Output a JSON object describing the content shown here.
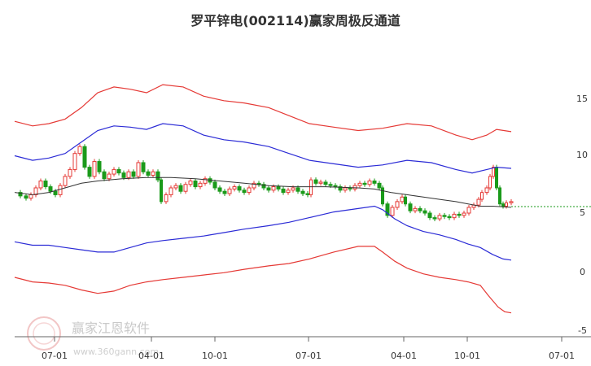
{
  "chart_data": {
    "type": "line",
    "title": "罗平锌电(002114)赢家周极反通道",
    "y_ticks": [
      "15",
      "10",
      "5",
      "0",
      "-5"
    ],
    "x_ticks": [
      "07-01",
      "04-01",
      "10-01",
      "07-01",
      "04-01",
      "10-01",
      "07-01"
    ],
    "ylim": [
      -5,
      18.5
    ],
    "grid": false,
    "colors": {
      "outer_band": "#e53935",
      "inner_band": "#2b2bd6",
      "moving_average": "#333333",
      "up_candle": "#e53935",
      "down_candle": "#1a9a1a",
      "last_price_line": "#1a9a1a"
    },
    "series": [
      {
        "role": "outer_upper",
        "values": [
          [
            18,
            13.0
          ],
          [
            40,
            12.6
          ],
          [
            60,
            12.8
          ],
          [
            80,
            13.2
          ],
          [
            100,
            14.2
          ],
          [
            120,
            15.5
          ],
          [
            140,
            16.0
          ],
          [
            160,
            15.8
          ],
          [
            180,
            15.5
          ],
          [
            200,
            16.2
          ],
          [
            225,
            16.0
          ],
          [
            250,
            15.2
          ],
          [
            275,
            14.8
          ],
          [
            300,
            14.6
          ],
          [
            330,
            14.2
          ],
          [
            355,
            13.5
          ],
          [
            380,
            12.8
          ],
          [
            410,
            12.5
          ],
          [
            440,
            12.2
          ],
          [
            470,
            12.4
          ],
          [
            500,
            12.8
          ],
          [
            530,
            12.6
          ],
          [
            560,
            11.8
          ],
          [
            580,
            11.4
          ],
          [
            598,
            11.8
          ],
          [
            610,
            12.3
          ],
          [
            628,
            12.1
          ]
        ]
      },
      {
        "role": "inner_upper",
        "values": [
          [
            18,
            10.0
          ],
          [
            40,
            9.6
          ],
          [
            60,
            9.8
          ],
          [
            80,
            10.2
          ],
          [
            100,
            11.2
          ],
          [
            120,
            12.2
          ],
          [
            140,
            12.6
          ],
          [
            160,
            12.5
          ],
          [
            180,
            12.3
          ],
          [
            200,
            12.8
          ],
          [
            225,
            12.6
          ],
          [
            250,
            11.8
          ],
          [
            275,
            11.4
          ],
          [
            300,
            11.2
          ],
          [
            330,
            10.8
          ],
          [
            355,
            10.2
          ],
          [
            380,
            9.6
          ],
          [
            410,
            9.3
          ],
          [
            440,
            9.0
          ],
          [
            470,
            9.2
          ],
          [
            500,
            9.6
          ],
          [
            530,
            9.4
          ],
          [
            560,
            8.8
          ],
          [
            580,
            8.5
          ],
          [
            598,
            8.8
          ],
          [
            610,
            9.0
          ],
          [
            628,
            8.9
          ]
        ]
      },
      {
        "role": "moving_average",
        "values": [
          [
            18,
            6.8
          ],
          [
            40,
            6.6
          ],
          [
            60,
            6.8
          ],
          [
            80,
            7.2
          ],
          [
            100,
            7.6
          ],
          [
            120,
            7.8
          ],
          [
            150,
            8.0
          ],
          [
            180,
            8.1
          ],
          [
            210,
            8.1
          ],
          [
            240,
            8.0
          ],
          [
            270,
            7.8
          ],
          [
            300,
            7.6
          ],
          [
            330,
            7.4
          ],
          [
            360,
            7.3
          ],
          [
            400,
            7.3
          ],
          [
            440,
            7.2
          ],
          [
            460,
            7.1
          ],
          [
            480,
            6.8
          ],
          [
            500,
            6.6
          ],
          [
            520,
            6.4
          ],
          [
            540,
            6.2
          ],
          [
            560,
            6.0
          ],
          [
            575,
            5.8
          ],
          [
            590,
            5.6
          ],
          [
            605,
            5.6
          ],
          [
            628,
            5.5
          ]
        ]
      },
      {
        "role": "inner_lower",
        "values": [
          [
            18,
            2.5
          ],
          [
            40,
            2.2
          ],
          [
            60,
            2.2
          ],
          [
            80,
            2.0
          ],
          [
            100,
            1.8
          ],
          [
            120,
            1.6
          ],
          [
            140,
            1.6
          ],
          [
            160,
            2.0
          ],
          [
            180,
            2.4
          ],
          [
            200,
            2.6
          ],
          [
            225,
            2.8
          ],
          [
            250,
            3.0
          ],
          [
            275,
            3.3
          ],
          [
            300,
            3.6
          ],
          [
            330,
            3.9
          ],
          [
            355,
            4.2
          ],
          [
            380,
            4.6
          ],
          [
            410,
            5.1
          ],
          [
            440,
            5.4
          ],
          [
            460,
            5.6
          ],
          [
            470,
            5.3
          ],
          [
            485,
            4.5
          ],
          [
            500,
            3.9
          ],
          [
            520,
            3.4
          ],
          [
            540,
            3.1
          ],
          [
            560,
            2.7
          ],
          [
            575,
            2.3
          ],
          [
            590,
            2.0
          ],
          [
            605,
            1.4
          ],
          [
            618,
            1.0
          ],
          [
            628,
            0.9
          ]
        ]
      },
      {
        "role": "outer_lower",
        "values": [
          [
            18,
            -0.6
          ],
          [
            40,
            -1.0
          ],
          [
            60,
            -1.1
          ],
          [
            80,
            -1.3
          ],
          [
            100,
            -1.7
          ],
          [
            120,
            -2.0
          ],
          [
            140,
            -1.8
          ],
          [
            160,
            -1.3
          ],
          [
            180,
            -1.0
          ],
          [
            200,
            -0.8
          ],
          [
            225,
            -0.6
          ],
          [
            250,
            -0.4
          ],
          [
            275,
            -0.2
          ],
          [
            300,
            0.1
          ],
          [
            330,
            0.4
          ],
          [
            355,
            0.6
          ],
          [
            380,
            1.0
          ],
          [
            410,
            1.6
          ],
          [
            440,
            2.1
          ],
          [
            460,
            2.1
          ],
          [
            470,
            1.6
          ],
          [
            485,
            0.8
          ],
          [
            500,
            0.2
          ],
          [
            520,
            -0.3
          ],
          [
            540,
            -0.6
          ],
          [
            560,
            -0.8
          ],
          [
            575,
            -1.0
          ],
          [
            590,
            -1.3
          ],
          [
            600,
            -2.2
          ],
          [
            612,
            -3.2
          ],
          [
            620,
            -3.6
          ],
          [
            628,
            -3.7
          ]
        ]
      },
      {
        "role": "price",
        "values": [
          [
            18,
            6.8
          ],
          [
            25,
            6.5
          ],
          [
            32,
            6.3
          ],
          [
            38,
            6.6
          ],
          [
            44,
            7.2
          ],
          [
            50,
            7.8
          ],
          [
            56,
            7.3
          ],
          [
            62,
            6.9
          ],
          [
            68,
            6.6
          ],
          [
            74,
            7.4
          ],
          [
            80,
            8.2
          ],
          [
            86,
            8.8
          ],
          [
            92,
            10.2
          ],
          [
            98,
            10.8
          ],
          [
            104,
            9.0
          ],
          [
            110,
            8.2
          ],
          [
            116,
            9.5
          ],
          [
            122,
            8.6
          ],
          [
            128,
            8.0
          ],
          [
            134,
            8.4
          ],
          [
            140,
            8.8
          ],
          [
            146,
            8.5
          ],
          [
            152,
            8.1
          ],
          [
            158,
            8.6
          ],
          [
            164,
            8.2
          ],
          [
            170,
            9.4
          ],
          [
            176,
            8.6
          ],
          [
            182,
            8.3
          ],
          [
            188,
            8.6
          ],
          [
            194,
            7.9
          ],
          [
            198,
            6.0
          ],
          [
            204,
            6.6
          ],
          [
            210,
            7.2
          ],
          [
            216,
            7.4
          ],
          [
            222,
            6.9
          ],
          [
            228,
            7.5
          ],
          [
            234,
            7.8
          ],
          [
            240,
            7.3
          ],
          [
            246,
            7.6
          ],
          [
            252,
            8.0
          ],
          [
            258,
            7.7
          ],
          [
            264,
            7.2
          ],
          [
            270,
            6.9
          ],
          [
            276,
            6.7
          ],
          [
            282,
            7.1
          ],
          [
            288,
            7.3
          ],
          [
            294,
            7.0
          ],
          [
            300,
            6.8
          ],
          [
            306,
            7.2
          ],
          [
            312,
            7.6
          ],
          [
            318,
            7.5
          ],
          [
            324,
            7.2
          ],
          [
            330,
            7.0
          ],
          [
            336,
            7.3
          ],
          [
            342,
            7.1
          ],
          [
            348,
            6.8
          ],
          [
            354,
            7.0
          ],
          [
            360,
            7.2
          ],
          [
            366,
            6.9
          ],
          [
            372,
            6.7
          ],
          [
            378,
            6.6
          ],
          [
            382,
            7.9
          ],
          [
            388,
            7.6
          ],
          [
            394,
            7.7
          ],
          [
            400,
            7.5
          ],
          [
            406,
            7.4
          ],
          [
            412,
            7.3
          ],
          [
            418,
            7.0
          ],
          [
            424,
            7.2
          ],
          [
            430,
            7.1
          ],
          [
            436,
            7.4
          ],
          [
            442,
            7.6
          ],
          [
            448,
            7.5
          ],
          [
            454,
            7.8
          ],
          [
            460,
            7.6
          ],
          [
            466,
            7.2
          ],
          [
            470,
            5.8
          ],
          [
            476,
            4.8
          ],
          [
            482,
            5.5
          ],
          [
            488,
            6.0
          ],
          [
            494,
            6.4
          ],
          [
            498,
            5.8
          ],
          [
            504,
            5.2
          ],
          [
            510,
            5.4
          ],
          [
            516,
            5.2
          ],
          [
            522,
            5.0
          ],
          [
            528,
            4.6
          ],
          [
            534,
            4.5
          ],
          [
            540,
            4.8
          ],
          [
            546,
            4.7
          ],
          [
            552,
            4.6
          ],
          [
            558,
            4.9
          ],
          [
            564,
            4.8
          ],
          [
            570,
            5.0
          ],
          [
            576,
            5.5
          ],
          [
            582,
            5.7
          ],
          [
            588,
            6.2
          ],
          [
            592,
            6.8
          ],
          [
            598,
            7.2
          ],
          [
            602,
            8.2
          ],
          [
            606,
            9.0
          ],
          [
            610,
            7.2
          ],
          [
            614,
            5.8
          ],
          [
            618,
            5.6
          ],
          [
            622,
            5.9
          ],
          [
            628,
            6.0
          ]
        ]
      }
    ]
  }
}
